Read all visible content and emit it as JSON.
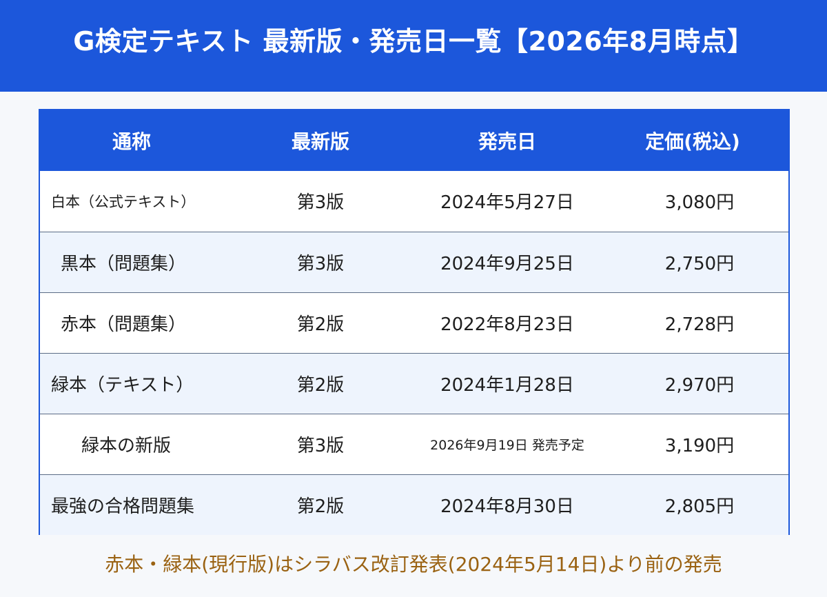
{
  "header": {
    "title": "G検定テキスト 最新版・発売日一覧【2026年8月時点】"
  },
  "colors": {
    "accent": "#1c57db",
    "row_alt": "#eef4fd",
    "footnote": "#9a6212"
  },
  "table": {
    "columns": [
      "通称",
      "最新版",
      "発売日",
      "定価(税込)"
    ],
    "rows": [
      {
        "name": "白本（公式テキスト）",
        "edition": "第3版",
        "release_date": "2024年5月27日",
        "price": "3,080円"
      },
      {
        "name": "黒本（問題集）",
        "edition": "第3版",
        "release_date": "2024年9月25日",
        "price": "2,750円"
      },
      {
        "name": "赤本（問題集）",
        "edition": "第2版",
        "release_date": "2022年8月23日",
        "price": "2,728円"
      },
      {
        "name": "緑本（テキスト）",
        "edition": "第2版",
        "release_date": "2024年1月28日",
        "price": "2,970円"
      },
      {
        "name": "緑本の新版",
        "edition": "第3版",
        "release_date": "2026年9月19日 発売予定",
        "price": "3,190円"
      },
      {
        "name": "最強の合格問題集",
        "edition": "第2版",
        "release_date": "2024年8月30日",
        "price": "2,805円"
      }
    ]
  },
  "footnote": "赤本・緑本(現行版)はシラバス改訂発表(2024年5月14日)より前の発売"
}
